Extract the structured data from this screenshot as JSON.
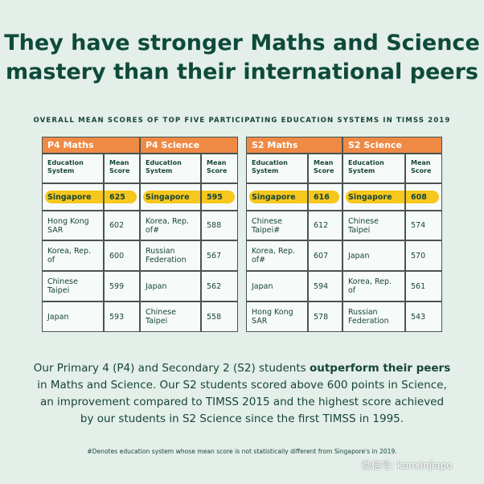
{
  "header": {
    "title": [
      "They have stronger Maths and Science",
      "mastery than their international peers"
    ],
    "subtitle": "OVERALL MEAN SCORES OF TOP FIVE PARTICIPATING EDUCATION SYSTEMS IN TIMSS 2019"
  },
  "tables": [
    {
      "title": "P4 Maths",
      "columns": [
        "Education System",
        "Mean Score"
      ],
      "rows": [
        [
          "Singapore",
          625
        ],
        [
          "Hong Kong SAR",
          602
        ],
        [
          "Korea, Rep. of",
          600
        ],
        [
          "Chinese Taipei",
          599
        ],
        [
          "Japan",
          593
        ]
      ]
    },
    {
      "title": "P4 Science",
      "columns": [
        "Education System",
        "Mean Score"
      ],
      "rows": [
        [
          "Singapore",
          595
        ],
        [
          "Korea, Rep. of#",
          588
        ],
        [
          "Russian Federation",
          567
        ],
        [
          "Japan",
          562
        ],
        [
          "Chinese Taipei",
          558
        ]
      ]
    },
    {
      "title": "S2 Maths",
      "columns": [
        "Education System",
        "Mean Score"
      ],
      "rows": [
        [
          "Singapore",
          616
        ],
        [
          "Chinese Taipei#",
          612
        ],
        [
          "Korea, Rep. of#",
          607
        ],
        [
          "Japan",
          594
        ],
        [
          "Hong Kong SAR",
          578
        ]
      ]
    },
    {
      "title": "S2 Science",
      "columns": [
        "Education System",
        "Mean Score"
      ],
      "rows": [
        [
          "Singapore",
          608
        ],
        [
          "Chinese Taipei",
          574
        ],
        [
          "Japan",
          570
        ],
        [
          "Korea, Rep. of",
          561
        ],
        [
          "Russian Federation",
          543
        ]
      ]
    }
  ],
  "paragraph": [
    "Our Primary 4 (P4) and Secondary 2 (S2) students ",
    "outperform their peers",
    " in Maths and Science. Our S2 students scored above 600 points in Science, an improvement compared to TIMSS 2015 and the highest score achieved by our students in S2 Science since the first TIMSS in 1995."
  ],
  "footnote": "#Denotes education system whose mean score is not statistically different from Singapore's in 2019.",
  "watermark": "微信号: kanxinjiapo"
}
